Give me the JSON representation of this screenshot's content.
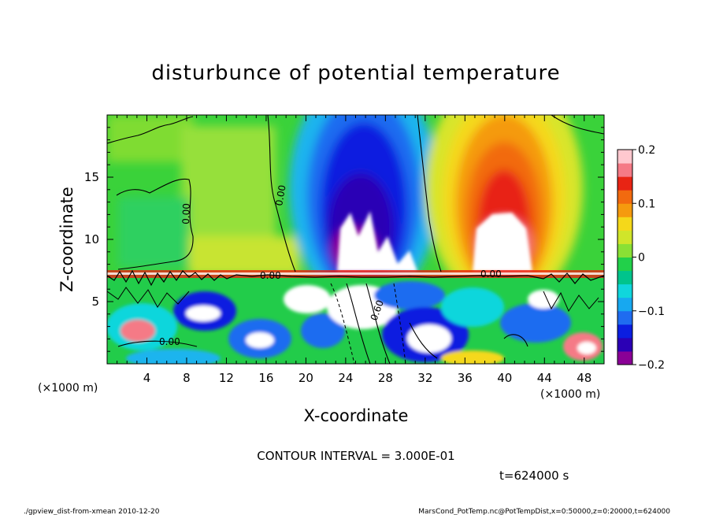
{
  "chart_data": {
    "type": "heatmap",
    "title": "disturbunce of potential temperature",
    "xlabel": "X-coordinate",
    "ylabel": "Z-coordinate",
    "x_unit": "(×1000 m)",
    "y_unit": "(×1000 m)",
    "xlim": [
      0,
      50
    ],
    "ylim": [
      0,
      20
    ],
    "x_ticks": [
      4,
      8,
      12,
      16,
      20,
      24,
      28,
      32,
      36,
      40,
      44,
      48
    ],
    "y_ticks": [
      5,
      10,
      15
    ],
    "colorbar": {
      "range": [
        -0.2,
        0.2
      ],
      "ticks": [
        {
          "value": 0.2,
          "label": "0.2"
        },
        {
          "value": 0.1,
          "label": "0.1"
        },
        {
          "value": 0,
          "label": "0"
        },
        {
          "value": -0.1,
          "label": "−0.1"
        },
        {
          "value": -0.2,
          "label": "−0.2"
        }
      ],
      "colors": [
        "#8a0096",
        "#2b00b5",
        "#0b1ee0",
        "#1f6cf0",
        "#17a8f0",
        "#10d6dc",
        "#00c48c",
        "#22d04a",
        "#8ae035",
        "#d0e52a",
        "#f5d81a",
        "#f59a0e",
        "#f26a0f",
        "#e82414",
        "#f57a86",
        "#ffc8cf"
      ]
    },
    "contour_labels": [
      "0.00",
      "0.00",
      "0.00",
      "0.00",
      "0.60",
      "0.00"
    ],
    "contour_interval": "CONTOUR INTERVAL = 3.000E-01",
    "time": "t=624000 s"
  },
  "footer": {
    "left": "./gpview_dist-from-xmean  2010-12-20",
    "right": "MarsCond_PotTemp.nc@PotTempDist,x=0:50000,z=0:20000,t=624000"
  }
}
